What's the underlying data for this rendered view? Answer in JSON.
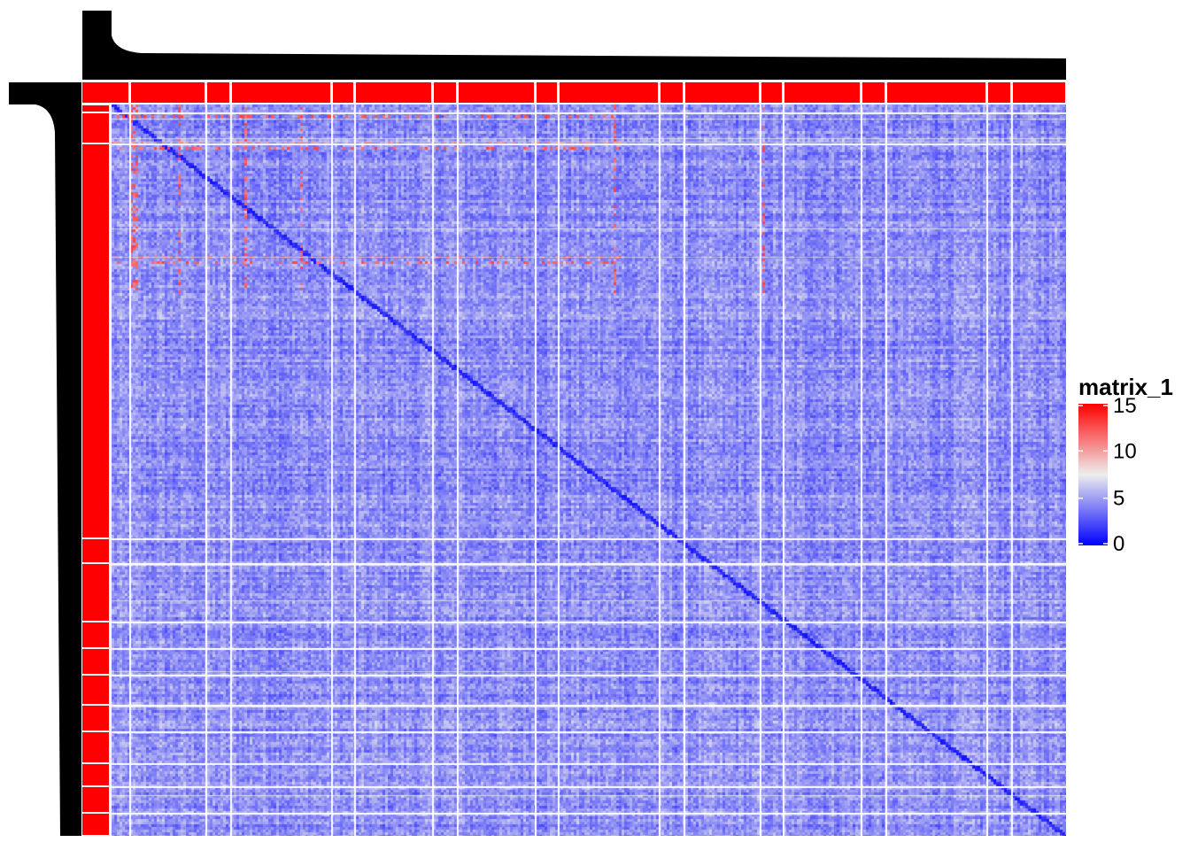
{
  "chart_data": {
    "type": "heatmap",
    "title": "",
    "xlabel": "",
    "ylabel": "",
    "color_scale": {
      "name": "matrix_1",
      "stops": [
        {
          "value": 0,
          "color": "#0000ff"
        },
        {
          "value": 7.5,
          "color": "#eeeeee"
        },
        {
          "value": 15,
          "color": "#ff0000"
        }
      ],
      "ticks": [
        0,
        5,
        10,
        15
      ],
      "range": [
        0,
        15
      ]
    },
    "row_dendrogram": true,
    "column_dendrogram": true,
    "row_annotation_color": "#ff0000",
    "column_annotation_color": "#ff0000",
    "typical_value": 4.5,
    "diagonal_value": 0.5,
    "high_value_rows_cols_value": 11,
    "legend_position": "right"
  }
}
